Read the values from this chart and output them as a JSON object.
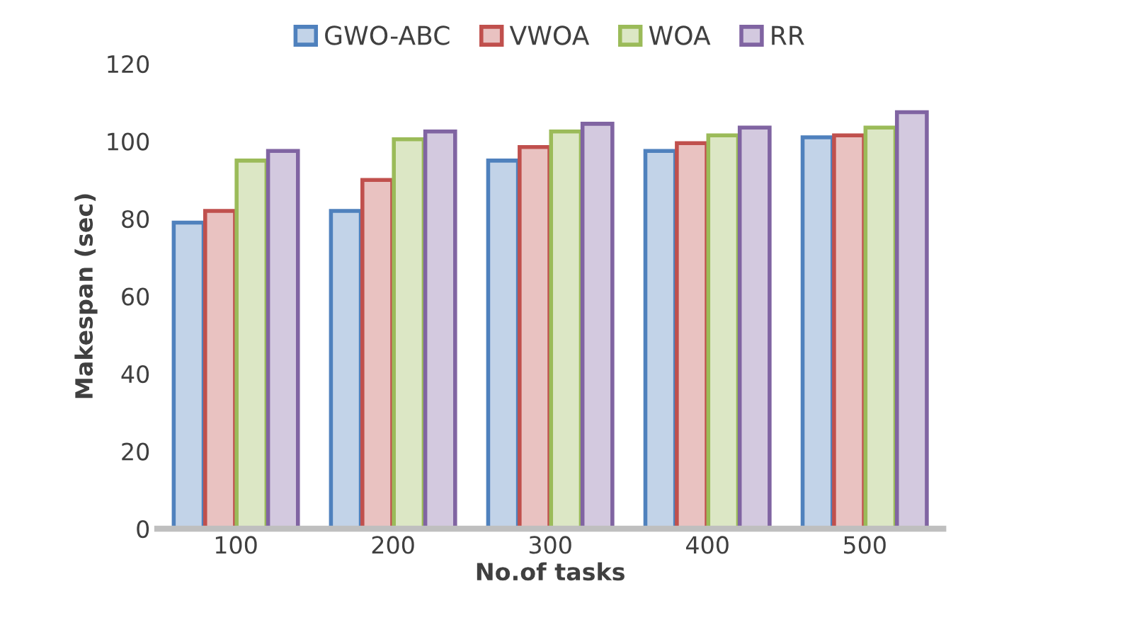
{
  "chart_data": {
    "type": "bar",
    "xlabel": "No.of tasks",
    "ylabel": "Makespan (sec)",
    "categories": [
      "100",
      "200",
      "300",
      "400",
      "500"
    ],
    "series": [
      {
        "name": "GWO-ABC",
        "color": "#4f81bd",
        "values": [
          79,
          82,
          95,
          97.5,
          101
        ]
      },
      {
        "name": "VWOA",
        "color": "#c0504d",
        "values": [
          82,
          90,
          98.5,
          99.5,
          101.5
        ]
      },
      {
        "name": "WOA",
        "color": "#9bbb59",
        "values": [
          95,
          100.5,
          102.5,
          101.5,
          103.5
        ]
      },
      {
        "name": "RR",
        "color": "#8064a2",
        "values": [
          97.5,
          102.5,
          104.5,
          103.5,
          107.5
        ]
      }
    ],
    "ylim": [
      0,
      120
    ],
    "yticks": [
      0,
      20,
      40,
      60,
      80,
      100,
      120
    ],
    "grid": false,
    "legend": "top"
  }
}
